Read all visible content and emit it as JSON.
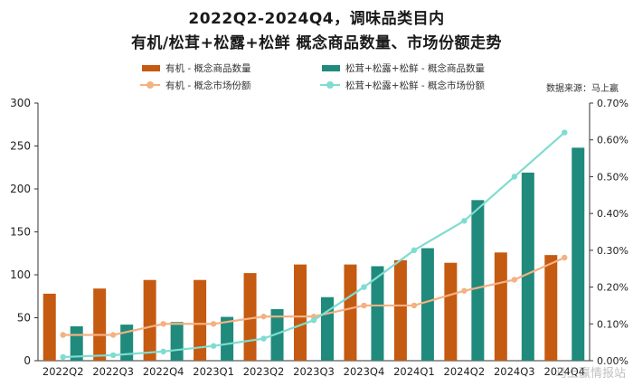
{
  "title": {
    "line1": "2022Q2-2024Q4，调味品类目内",
    "line2": "有机/松茸+松露+松鲜 概念商品数量、市场份额走势"
  },
  "source": "数据来源：马上赢",
  "watermark": "马上赢情报站",
  "colors": {
    "organic_bar": "#c55a11",
    "matsutake_bar": "#208a7c",
    "organic_line": "#f4b183",
    "matsutake_line": "#7fdcd0"
  },
  "chart_data": {
    "type": "bar",
    "categories": [
      "2022Q2",
      "2022Q3",
      "2022Q4",
      "2023Q1",
      "2023Q2",
      "2023Q3",
      "2023Q4",
      "2024Q1",
      "2024Q2",
      "2024Q3",
      "2024Q4"
    ],
    "series": [
      {
        "name": "有机 - 概念商品数量",
        "kind": "bar",
        "axis": "left",
        "values": [
          78,
          84,
          94,
          94,
          102,
          112,
          112,
          117,
          114,
          126,
          123
        ]
      },
      {
        "name": "松茸+松露+松鲜 - 概念商品数量",
        "kind": "bar",
        "axis": "left",
        "values": [
          40,
          42,
          45,
          51,
          60,
          74,
          110,
          131,
          187,
          219,
          248
        ]
      },
      {
        "name": "有机 - 概念市场份额",
        "kind": "line",
        "axis": "right",
        "values": [
          0.07,
          0.07,
          0.1,
          0.1,
          0.12,
          0.12,
          0.15,
          0.15,
          0.19,
          0.22,
          0.28
        ]
      },
      {
        "name": "松茸+松露+松鲜 - 概念市场份额",
        "kind": "line",
        "axis": "right",
        "values": [
          0.01,
          0.015,
          0.025,
          0.04,
          0.06,
          0.11,
          0.2,
          0.3,
          0.38,
          0.5,
          0.62
        ]
      }
    ],
    "y_left": {
      "min": 0,
      "max": 300,
      "ticks": [
        "0",
        "50",
        "100",
        "150",
        "200",
        "250",
        "300"
      ]
    },
    "y_right": {
      "min": 0,
      "max": 0.7,
      "ticks": [
        "0.00%",
        "0.10%",
        "0.20%",
        "0.30%",
        "0.40%",
        "0.50%",
        "0.60%",
        "0.70%"
      ]
    },
    "legend_position": "top"
  }
}
